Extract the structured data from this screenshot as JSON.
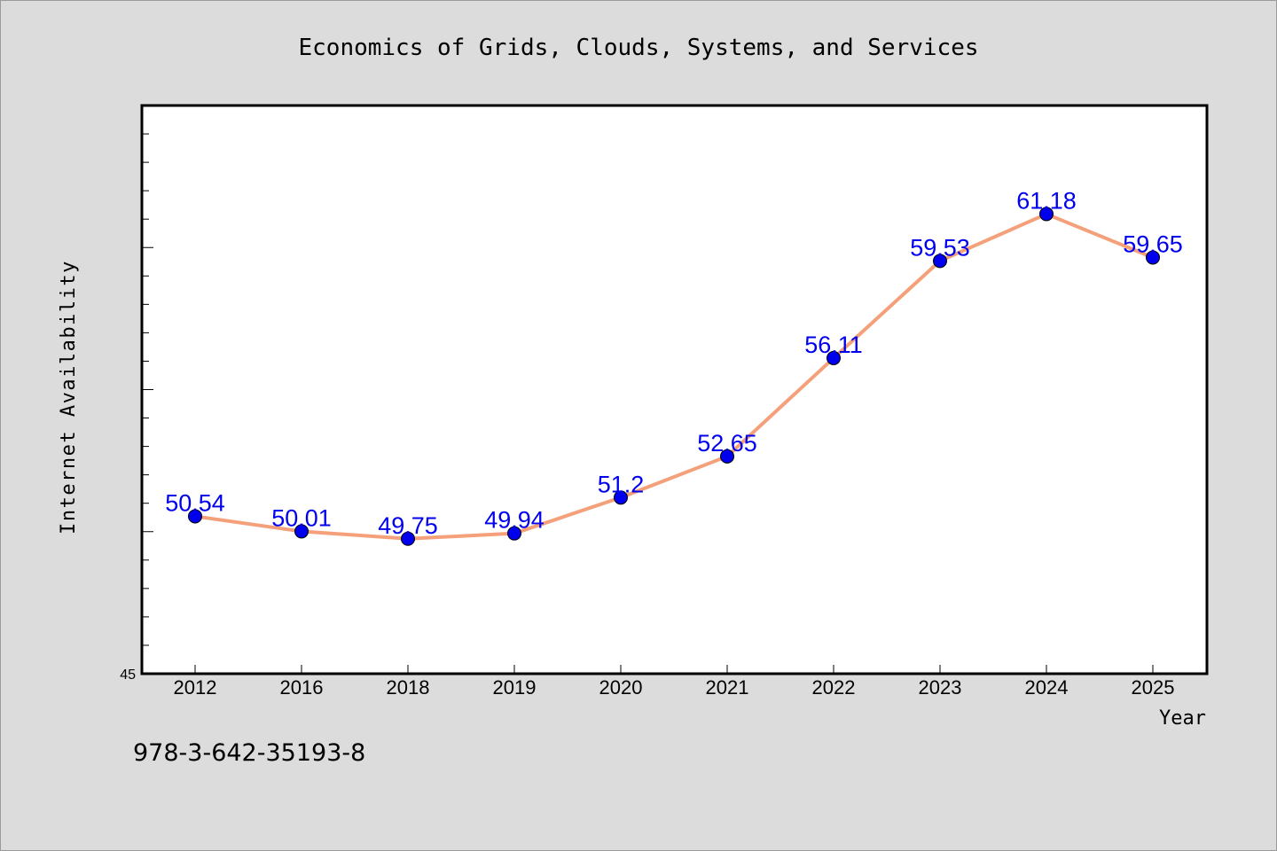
{
  "chart_data": {
    "type": "line",
    "title": "Economics of Grids, Clouds, Systems, and Services",
    "xlabel": "Year",
    "ylabel": "Internet Availability",
    "categories": [
      "2012",
      "2016",
      "2018",
      "2019",
      "2020",
      "2021",
      "2022",
      "2023",
      "2024",
      "2025"
    ],
    "series": [
      {
        "values": [
          50.54,
          50.01,
          49.75,
          49.94,
          51.2,
          52.65,
          56.11,
          59.53,
          61.18,
          59.65
        ]
      }
    ],
    "y_tick_labels": [
      "45"
    ],
    "ylim": [
      45,
      65
    ],
    "grid": false,
    "line_color": "#f4a07a",
    "marker_color": "#0000ee",
    "label_color": "#0000ee",
    "plot_background": "#ffffff",
    "figure_background": "#dcdcdc"
  },
  "footer": {
    "isbn": "978-3-642-35193-8"
  }
}
